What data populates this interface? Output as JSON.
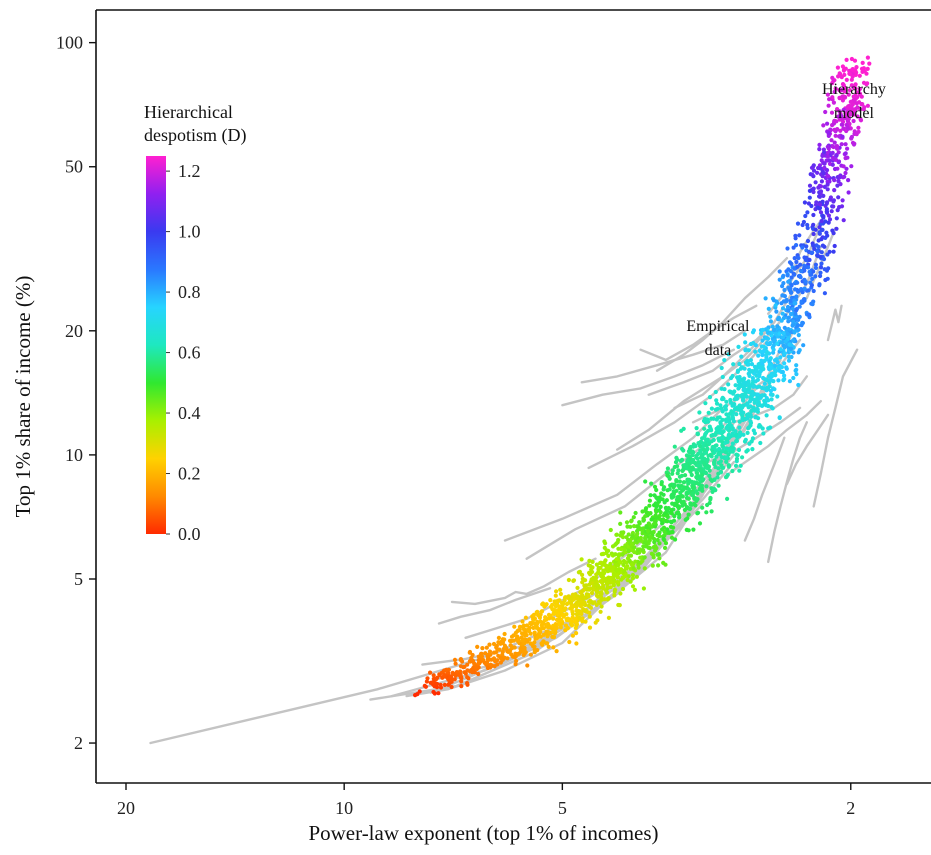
{
  "chart_data": {
    "type": "scatter",
    "title": "",
    "xlabel": "Power-law exponent (top 1% of incomes)",
    "ylabel": "Top 1% share of income (%)",
    "x_scale": "log",
    "x_reversed": true,
    "y_scale": "log",
    "xlim": [
      22,
      1.55
    ],
    "ylim": [
      1.6,
      120
    ],
    "x_ticks": [
      20,
      10,
      5,
      2
    ],
    "x_tick_labels": [
      "20",
      "10",
      "5",
      "2"
    ],
    "y_ticks": [
      2,
      5,
      10,
      20,
      50,
      100
    ],
    "y_tick_labels": [
      "2",
      "5",
      "10",
      "20",
      "50",
      "100"
    ],
    "grid": false,
    "annotations": [
      {
        "text_lines": [
          "Hierarchy",
          "model"
        ],
        "x": 1.98,
        "y": 75
      },
      {
        "text_lines": [
          "Empirical",
          "data"
        ],
        "x": 3.05,
        "y": 20
      }
    ],
    "colorbar": {
      "title_lines": [
        "Hierarchical",
        "despotism (D)"
      ],
      "range": [
        0.0,
        1.25
      ],
      "ticks": [
        0.0,
        0.2,
        0.4,
        0.6,
        0.8,
        1.0,
        1.2
      ],
      "tick_labels": [
        "0.0",
        "0.2",
        "0.4",
        "0.6",
        "0.8",
        "1.0",
        "1.2"
      ],
      "colors": [
        "#ff2a00",
        "#ff8a00",
        "#ffd200",
        "#a8f000",
        "#30e830",
        "#1ee8c0",
        "#27d4ff",
        "#2a78ff",
        "#3a3af0",
        "#9020f0",
        "#ff20d0"
      ],
      "placement": "left"
    },
    "series": [
      {
        "name": "Hierarchy model",
        "kind": "points",
        "color_by": "D",
        "centerline": [
          {
            "x": 8.0,
            "y": 2.7,
            "D": 0.0
          },
          {
            "x": 7.0,
            "y": 2.95,
            "D": 0.08
          },
          {
            "x": 6.0,
            "y": 3.35,
            "D": 0.15
          },
          {
            "x": 5.0,
            "y": 4.1,
            "D": 0.25
          },
          {
            "x": 4.5,
            "y": 4.8,
            "D": 0.33
          },
          {
            "x": 4.0,
            "y": 5.9,
            "D": 0.42
          },
          {
            "x": 3.5,
            "y": 7.8,
            "D": 0.53
          },
          {
            "x": 3.0,
            "y": 11.0,
            "D": 0.62
          },
          {
            "x": 2.7,
            "y": 15.0,
            "D": 0.7
          },
          {
            "x": 2.5,
            "y": 19.0,
            "D": 0.78
          },
          {
            "x": 2.35,
            "y": 25.0,
            "D": 0.87
          },
          {
            "x": 2.25,
            "y": 32.0,
            "D": 0.95
          },
          {
            "x": 2.18,
            "y": 42.0,
            "D": 1.05
          },
          {
            "x": 2.1,
            "y": 56.0,
            "D": 1.15
          },
          {
            "x": 2.03,
            "y": 72.0,
            "D": 1.22
          },
          {
            "x": 1.95,
            "y": 85.0,
            "D": 1.25
          }
        ],
        "spread": [
          {
            "x": 8.0,
            "y": 0.05
          },
          {
            "x": 6.0,
            "y": 0.12
          },
          {
            "x": 4.0,
            "y": 0.22
          },
          {
            "x": 3.0,
            "y": 0.3
          },
          {
            "x": 2.5,
            "y": 0.35
          },
          {
            "x": 2.2,
            "y": 0.32
          },
          {
            "x": 2.0,
            "y": 0.3
          }
        ]
      },
      {
        "name": "Empirical data",
        "kind": "lines",
        "color": "#c4c4c4",
        "trajectories": [
          [
            [
              18.5,
              2.0
            ],
            [
              9.0,
              2.7
            ],
            [
              6.5,
              3.2
            ],
            [
              4.5,
              4.2
            ],
            [
              3.6,
              5.8
            ],
            [
              3.2,
              8.0
            ],
            [
              2.9,
              12.0
            ]
          ],
          [
            [
              9.2,
              2.55
            ],
            [
              7.0,
              2.75
            ],
            [
              5.5,
              3.3
            ],
            [
              4.2,
              4.6
            ],
            [
              3.5,
              6.5
            ],
            [
              3.0,
              9.5
            ],
            [
              2.7,
              13.0
            ]
          ],
          [
            [
              8.6,
              2.6
            ],
            [
              6.4,
              3.0
            ],
            [
              5.0,
              3.7
            ],
            [
              4.0,
              5.0
            ],
            [
              3.4,
              7.0
            ],
            [
              2.95,
              10.5
            ],
            [
              2.6,
              15.0
            ],
            [
              2.4,
              20.0
            ]
          ],
          [
            [
              7.5,
              2.85
            ],
            [
              6.0,
              3.15
            ],
            [
              4.8,
              4.0
            ],
            [
              3.9,
              5.5
            ],
            [
              3.3,
              7.6
            ],
            [
              2.8,
              11.5
            ],
            [
              2.5,
              17.0
            ]
          ],
          [
            [
              6.2,
              3.05
            ],
            [
              5.1,
              3.6
            ],
            [
              4.3,
              4.5
            ],
            [
              3.7,
              6.0
            ],
            [
              3.1,
              8.8
            ],
            [
              2.7,
              13.5
            ],
            [
              2.45,
              19.5
            ]
          ],
          [
            [
              8.2,
              2.6
            ],
            [
              7.2,
              2.7
            ],
            [
              6.0,
              3.0
            ],
            [
              5.0,
              3.5
            ],
            [
              4.1,
              4.9
            ],
            [
              3.45,
              6.8
            ],
            [
              2.9,
              10.0
            ]
          ],
          [
            [
              7.1,
              4.4
            ],
            [
              6.6,
              4.35
            ],
            [
              6.0,
              4.5
            ],
            [
              5.8,
              4.65
            ],
            [
              5.6,
              4.6
            ],
            [
              5.3,
              4.8
            ],
            [
              4.9,
              5.2
            ],
            [
              4.5,
              5.6
            ]
          ],
          [
            [
              7.4,
              3.9
            ],
            [
              6.9,
              4.05
            ],
            [
              6.3,
              4.2
            ],
            [
              5.8,
              4.45
            ],
            [
              5.2,
              4.75
            ]
          ],
          [
            [
              7.8,
              3.1
            ],
            [
              6.8,
              3.2
            ],
            [
              5.4,
              3.5
            ],
            [
              4.6,
              4.1
            ],
            [
              3.9,
              5.2
            ],
            [
              3.3,
              7.5
            ]
          ],
          [
            [
              6.8,
              3.6
            ],
            [
              5.6,
              4.0
            ],
            [
              4.7,
              4.7
            ],
            [
              4.0,
              5.9
            ],
            [
              3.5,
              7.2
            ],
            [
              3.1,
              9.2
            ],
            [
              2.8,
              12.5
            ]
          ],
          [
            [
              6.0,
              6.2
            ],
            [
              5.0,
              7.0
            ],
            [
              4.2,
              8.0
            ],
            [
              3.7,
              9.5
            ],
            [
              3.3,
              11.0
            ],
            [
              3.0,
              13.0
            ]
          ],
          [
            [
              5.6,
              5.6
            ],
            [
              4.8,
              6.6
            ],
            [
              4.1,
              7.5
            ],
            [
              3.6,
              9.0
            ],
            [
              3.2,
              10.5
            ],
            [
              2.9,
              12.5
            ],
            [
              2.7,
              14.5
            ]
          ],
          [
            [
              4.6,
              9.3
            ],
            [
              4.0,
              10.5
            ],
            [
              3.5,
              12.0
            ],
            [
              3.1,
              14.0
            ],
            [
              2.8,
              16.5
            ],
            [
              2.6,
              19.0
            ]
          ],
          [
            [
              4.2,
              10.3
            ],
            [
              3.8,
              11.5
            ],
            [
              3.4,
              13.5
            ],
            [
              3.0,
              15.5
            ],
            [
              2.75,
              18.0
            ],
            [
              2.55,
              21.0
            ],
            [
              2.4,
              25.0
            ]
          ],
          [
            [
              5.0,
              13.2
            ],
            [
              4.4,
              14.0
            ],
            [
              3.9,
              14.5
            ],
            [
              3.5,
              15.5
            ],
            [
              3.2,
              16.5
            ],
            [
              2.9,
              18.0
            ]
          ],
          [
            [
              4.7,
              15.0
            ],
            [
              4.2,
              15.5
            ],
            [
              3.7,
              16.5
            ],
            [
              3.3,
              17.5
            ],
            [
              3.0,
              18.5
            ],
            [
              2.8,
              20.0
            ]
          ],
          [
            [
              3.9,
              18.0
            ],
            [
              3.6,
              17.0
            ],
            [
              3.3,
              18.5
            ],
            [
              3.1,
              20.0
            ],
            [
              2.9,
              21.5
            ],
            [
              2.7,
              23.0
            ]
          ],
          [
            [
              3.7,
              16.0
            ],
            [
              3.4,
              17.5
            ],
            [
              3.2,
              19.0
            ],
            [
              3.0,
              21.0
            ],
            [
              2.8,
              24.0
            ],
            [
              2.6,
              27.0
            ],
            [
              2.45,
              30.0
            ]
          ],
          [
            [
              3.5,
              13.0
            ],
            [
              3.2,
              14.0
            ],
            [
              3.0,
              15.5
            ],
            [
              2.8,
              17.0
            ],
            [
              2.6,
              19.5
            ],
            [
              2.45,
              22.0
            ],
            [
              2.3,
              26.0
            ],
            [
              2.2,
              32.0
            ]
          ],
          [
            [
              3.3,
              12.0
            ],
            [
              3.0,
              13.0
            ],
            [
              2.8,
              14.0
            ],
            [
              2.65,
              15.0
            ],
            [
              2.5,
              16.5
            ],
            [
              2.35,
              19.0
            ]
          ],
          [
            [
              3.1,
              11.0
            ],
            [
              2.9,
              12.0
            ],
            [
              2.7,
              12.5
            ],
            [
              2.55,
              13.0
            ],
            [
              2.4,
              14.0
            ],
            [
              2.3,
              15.5
            ]
          ],
          [
            [
              3.2,
              9.5
            ],
            [
              2.9,
              10.2
            ],
            [
              2.7,
              11.0
            ],
            [
              2.5,
              12.0
            ],
            [
              2.35,
              13.0
            ]
          ],
          [
            [
              2.95,
              9.0
            ],
            [
              2.75,
              9.8
            ],
            [
              2.6,
              10.5
            ],
            [
              2.45,
              11.5
            ],
            [
              2.3,
              12.5
            ],
            [
              2.2,
              13.5
            ]
          ],
          [
            [
              2.8,
              6.2
            ],
            [
              2.72,
              7.0
            ],
            [
              2.65,
              8.0
            ],
            [
              2.58,
              9.0
            ],
            [
              2.52,
              10.0
            ],
            [
              2.47,
              11.0
            ]
          ],
          [
            [
              2.6,
              5.5
            ],
            [
              2.55,
              6.5
            ],
            [
              2.5,
              7.5
            ],
            [
              2.45,
              8.6
            ],
            [
              2.4,
              9.8
            ],
            [
              2.35,
              11.0
            ],
            [
              2.3,
              12.0
            ]
          ],
          [
            [
              2.25,
              7.5
            ],
            [
              2.2,
              9.0
            ],
            [
              2.15,
              11.0
            ],
            [
              2.1,
              13.0
            ],
            [
              2.05,
              15.5
            ],
            [
              1.96,
              18.0
            ]
          ],
          [
            [
              2.45,
              8.5
            ],
            [
              2.38,
              9.5
            ],
            [
              2.3,
              10.5
            ],
            [
              2.22,
              11.5
            ],
            [
              2.15,
              12.5
            ]
          ],
          [
            [
              2.15,
              19.0
            ],
            [
              2.12,
              21.0
            ],
            [
              2.1,
              22.5
            ],
            [
              2.08,
              21.0
            ],
            [
              2.06,
              23.0
            ]
          ],
          [
            [
              2.4,
              28.0
            ],
            [
              2.35,
              31.0
            ],
            [
              2.3,
              33.0
            ],
            [
              2.25,
              35.0
            ],
            [
              2.2,
              37.0
            ]
          ],
          [
            [
              2.3,
              24.0
            ],
            [
              2.25,
              26.5
            ],
            [
              2.2,
              29.0
            ],
            [
              2.15,
              32.0
            ],
            [
              2.1,
              35.5
            ]
          ],
          [
            [
              2.6,
              22.0
            ],
            [
              2.5,
              24.0
            ],
            [
              2.4,
              27.0
            ],
            [
              2.3,
              30.0
            ],
            [
              2.25,
              33.0
            ],
            [
              2.2,
              36.0
            ]
          ],
          [
            [
              3.8,
              14.0
            ],
            [
              3.4,
              15.0
            ],
            [
              3.1,
              16.0
            ],
            [
              2.9,
              17.5
            ],
            [
              2.7,
              19.0
            ],
            [
              2.55,
              21.0
            ]
          ],
          [
            [
              5.2,
              4.0
            ],
            [
              4.6,
              4.5
            ],
            [
              4.0,
              5.3
            ],
            [
              3.6,
              6.3
            ],
            [
              3.2,
              7.8
            ],
            [
              2.9,
              9.6
            ]
          ],
          [
            [
              7.6,
              2.65
            ],
            [
              6.7,
              2.9
            ],
            [
              5.7,
              3.3
            ],
            [
              4.9,
              3.9
            ],
            [
              4.2,
              4.8
            ],
            [
              3.7,
              5.9
            ],
            [
              3.2,
              7.6
            ]
          ]
        ]
      }
    ]
  }
}
